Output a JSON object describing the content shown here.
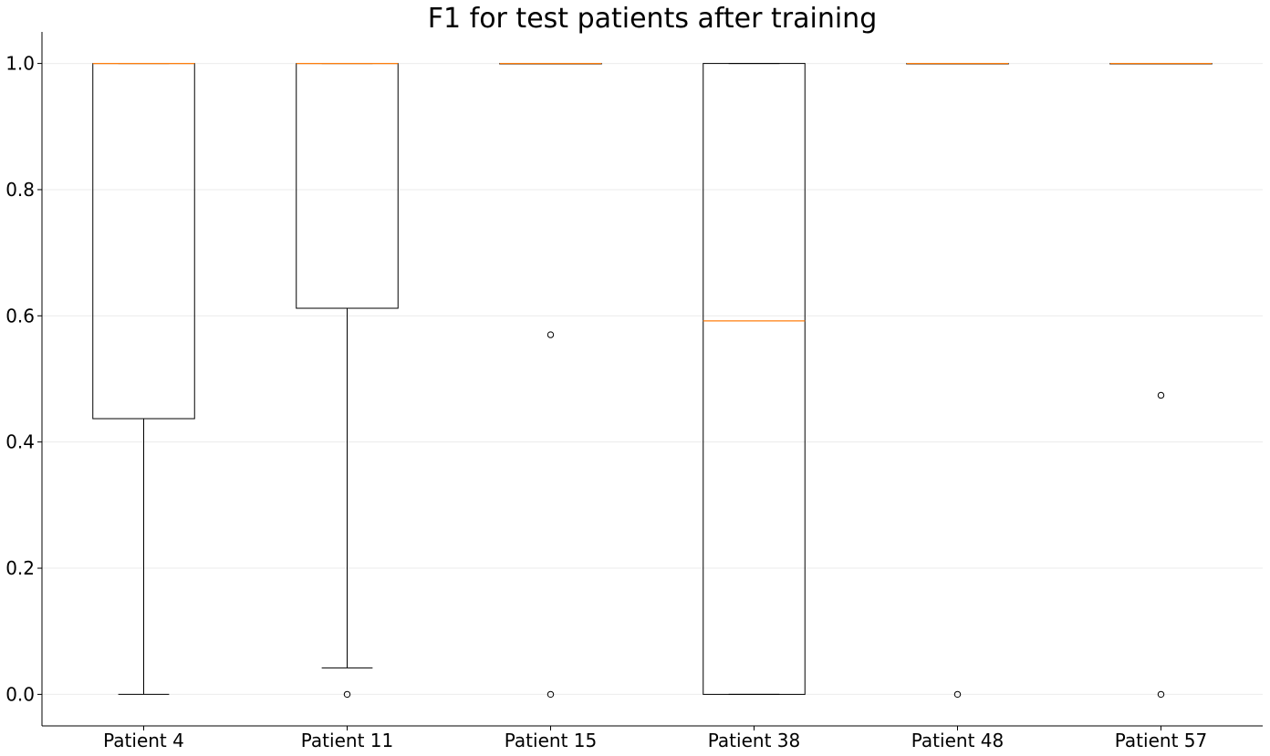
{
  "chart_data": {
    "type": "boxplot",
    "title": "F1 for test patients after training",
    "xlabel": "",
    "ylabel": "",
    "ylim": [
      -0.05,
      1.05
    ],
    "yticks": [
      0.0,
      0.2,
      0.4,
      0.6,
      0.8,
      1.0
    ],
    "ytick_labels": [
      "0.0",
      "0.2",
      "0.4",
      "0.6",
      "0.8",
      "1.0"
    ],
    "grid": "horizontal",
    "categories": [
      "Patient 4",
      "Patient 11",
      "Patient 15",
      "Patient 38",
      "Patient 48",
      "Patient 57"
    ],
    "boxes": [
      {
        "label": "Patient 4",
        "whisker_low": 0.0,
        "q1": 0.437,
        "median": 1.0,
        "q3": 1.0,
        "whisker_high": 1.0,
        "outliers": []
      },
      {
        "label": "Patient 11",
        "whisker_low": 0.042,
        "q1": 0.612,
        "median": 1.0,
        "q3": 1.0,
        "whisker_high": 1.0,
        "outliers": [
          0.0
        ]
      },
      {
        "label": "Patient 15",
        "whisker_low": 1.0,
        "q1": 1.0,
        "median": 1.0,
        "q3": 1.0,
        "whisker_high": 1.0,
        "outliers": [
          0.57,
          0.0
        ]
      },
      {
        "label": "Patient 38",
        "whisker_low": 0.0,
        "q1": 0.0,
        "median": 0.592,
        "q3": 1.0,
        "whisker_high": 1.0,
        "outliers": []
      },
      {
        "label": "Patient 48",
        "whisker_low": 1.0,
        "q1": 1.0,
        "median": 1.0,
        "q3": 1.0,
        "whisker_high": 1.0,
        "outliers": [
          0.0
        ]
      },
      {
        "label": "Patient 57",
        "whisker_low": 1.0,
        "q1": 1.0,
        "median": 1.0,
        "q3": 1.0,
        "whisker_high": 1.0,
        "outliers": [
          0.474,
          0.0
        ]
      }
    ],
    "colors": {
      "box": "#000000",
      "median": "#ff7f0e",
      "grid": "#ebebeb",
      "axis": "#000000"
    }
  }
}
